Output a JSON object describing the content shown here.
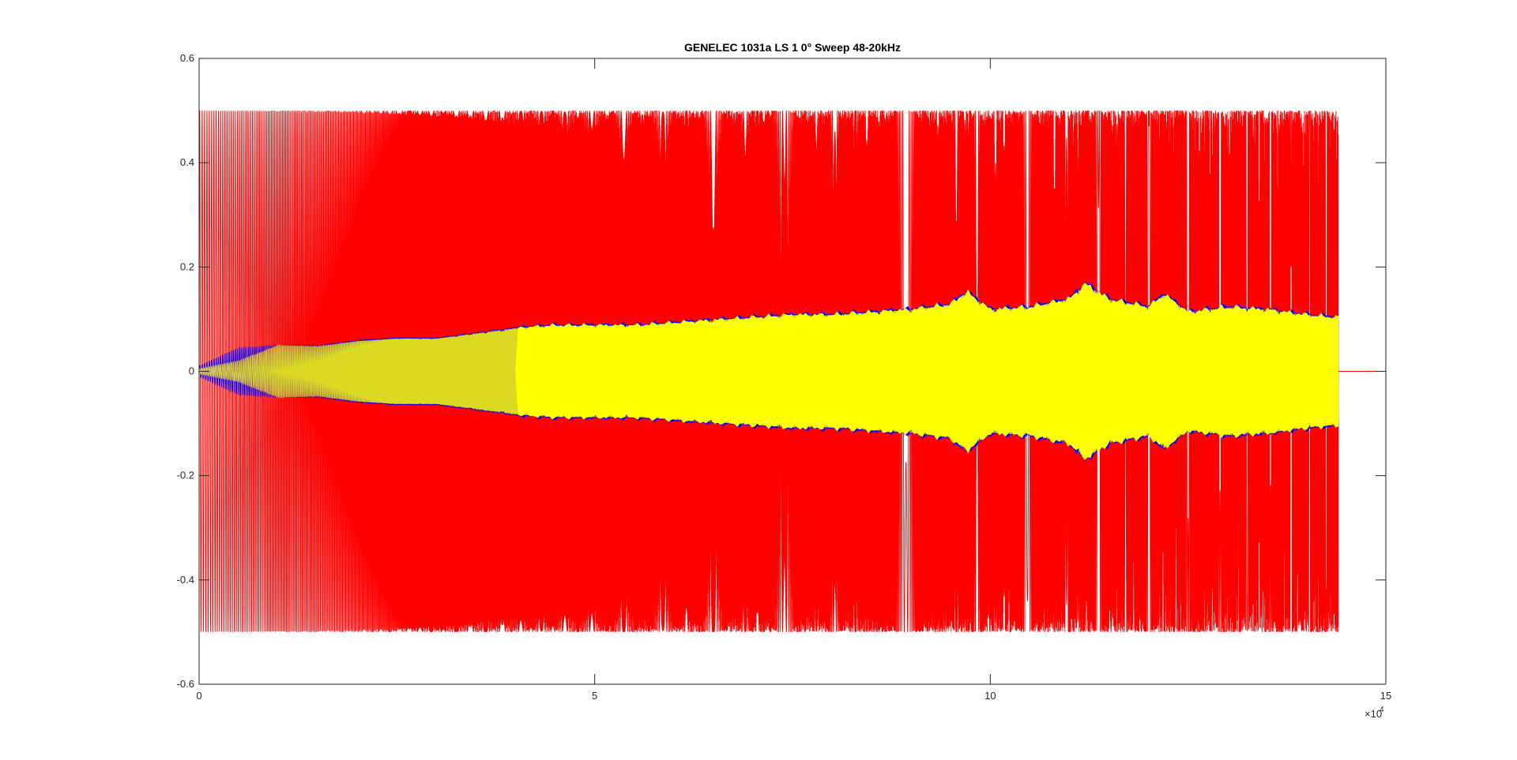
{
  "chart_data": {
    "type": "line",
    "title": "GENELEC 1031a LS 1 0° Sweep 48-20kHz",
    "xlabel": "",
    "ylabel": "",
    "xlim": [
      0,
      150000
    ],
    "ylim": [
      -0.6,
      0.6
    ],
    "x_ticks": [
      0,
      50000,
      100000,
      150000
    ],
    "x_tick_labels": [
      "0",
      "5",
      "10",
      "15"
    ],
    "x_exponent_label": "×10",
    "x_exponent_power": "4",
    "y_ticks": [
      -0.6,
      -0.4,
      -0.2,
      0,
      0.2,
      0.4,
      0.6
    ],
    "y_tick_labels": [
      "-0.6",
      "-0.4",
      "-0.2",
      "0",
      "0.2",
      "0.4",
      "0.6"
    ],
    "grid": false,
    "legend": "none",
    "series": [
      {
        "role": "excitation-sweep",
        "color": "#ff0000",
        "amplitude": 0.5,
        "x_start": 0,
        "x_end": 144000,
        "freq_start_hz": 48,
        "freq_end_hz": 20000
      },
      {
        "role": "measured-response-channel-1",
        "color": "#0000ff",
        "x_start": 0,
        "x_end": 144000,
        "envelope": {
          "x": [
            0,
            5000,
            10000,
            15000,
            20000,
            25000,
            30000,
            35000,
            40000,
            45000,
            50000,
            55000,
            60000,
            65000,
            70000,
            75000,
            80000,
            85000,
            90000,
            95000,
            97000,
            100000,
            105000,
            110000,
            112000,
            115000,
            120000,
            122000,
            125000,
            130000,
            135000,
            140000,
            144000
          ],
          "y": [
            0.01,
            0.045,
            0.05,
            0.05,
            0.06,
            0.065,
            0.065,
            0.075,
            0.085,
            0.09,
            0.09,
            0.09,
            0.095,
            0.1,
            0.105,
            0.11,
            0.11,
            0.115,
            0.12,
            0.13,
            0.155,
            0.12,
            0.125,
            0.14,
            0.17,
            0.14,
            0.125,
            0.15,
            0.115,
            0.125,
            0.12,
            0.11,
            0.105
          ]
        }
      },
      {
        "role": "measured-response-channel-2",
        "color": "#ffff00",
        "x_start": 0,
        "x_end": 144000,
        "envelope": {
          "x": [
            0,
            5000,
            10000,
            15000,
            20000,
            25000,
            30000,
            35000,
            40000,
            45000,
            50000,
            55000,
            60000,
            65000,
            70000,
            75000,
            80000,
            85000,
            90000,
            95000,
            97000,
            100000,
            105000,
            110000,
            112000,
            115000,
            120000,
            122000,
            125000,
            130000,
            135000,
            140000,
            144000
          ],
          "y": [
            0.005,
            0.02,
            0.05,
            0.048,
            0.058,
            0.063,
            0.063,
            0.073,
            0.083,
            0.088,
            0.088,
            0.088,
            0.093,
            0.098,
            0.103,
            0.108,
            0.108,
            0.113,
            0.118,
            0.128,
            0.152,
            0.118,
            0.123,
            0.138,
            0.167,
            0.138,
            0.123,
            0.147,
            0.113,
            0.123,
            0.118,
            0.108,
            0.103
          ]
        }
      }
    ]
  }
}
